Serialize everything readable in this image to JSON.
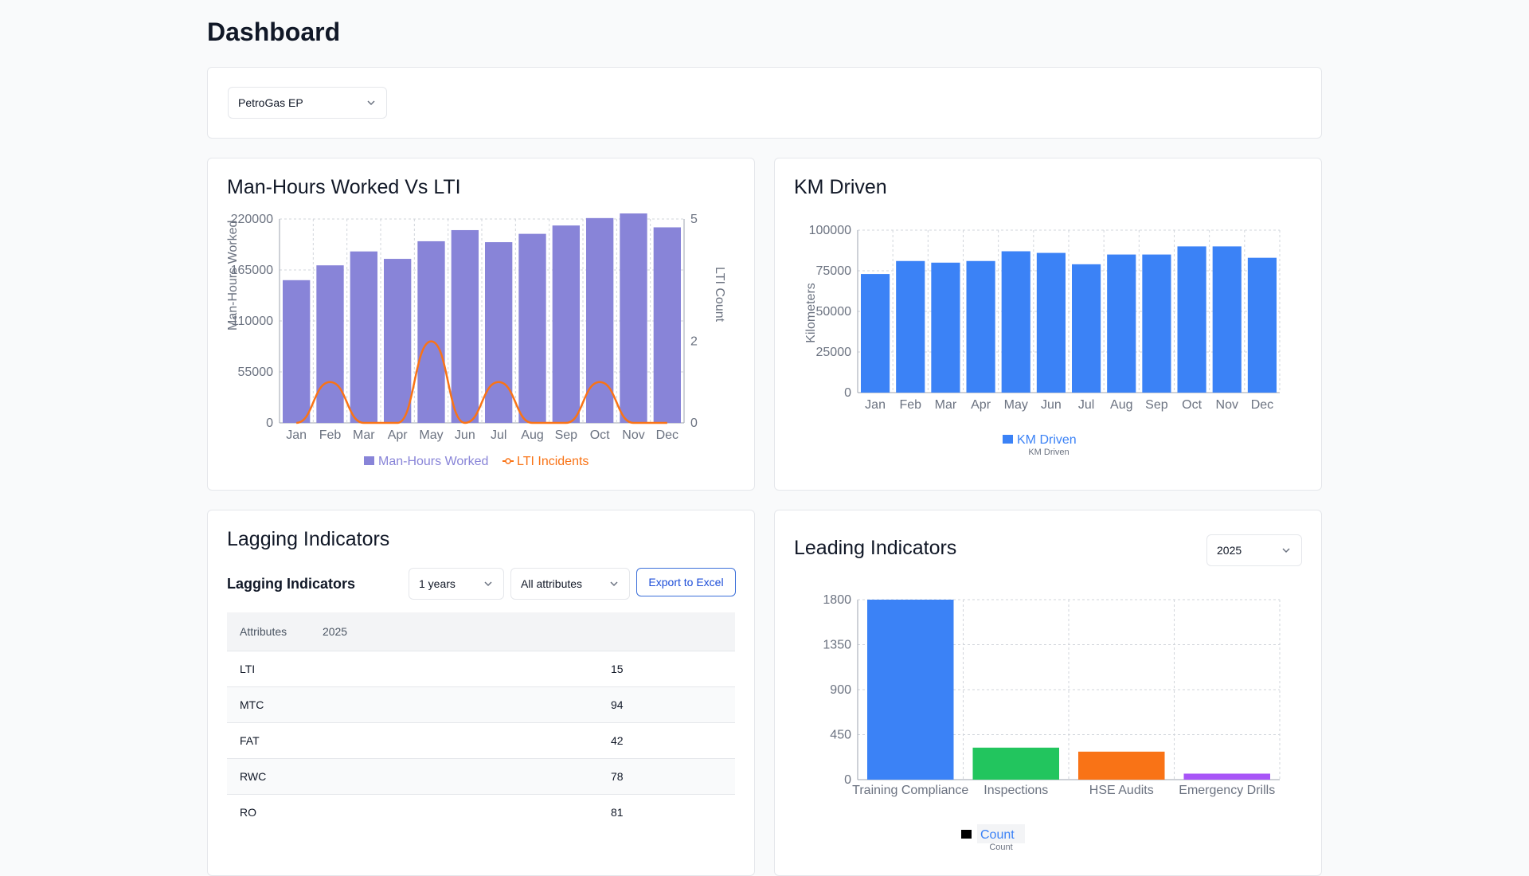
{
  "page": {
    "title": "Dashboard"
  },
  "company_select": {
    "value": "PetroGas EP"
  },
  "manhours_card": {
    "title": "Man-Hours Worked Vs LTI",
    "legend_bar": "Man-Hours Worked",
    "legend_line": "LTI Incidents"
  },
  "km_card": {
    "title": "KM Driven",
    "legend": "KM Driven",
    "legend_sub": "KM Driven"
  },
  "lagging_card": {
    "title": "Lagging Indicators",
    "subtitle": "Lagging Indicators",
    "period_select": "1 years",
    "attr_select": "All attributes",
    "export_label": "Export to Excel",
    "columns": [
      "Attributes",
      "2025"
    ],
    "rows": [
      {
        "name": "LTI",
        "value": "15"
      },
      {
        "name": "MTC",
        "value": "94"
      },
      {
        "name": "FAT",
        "value": "42"
      },
      {
        "name": "RWC",
        "value": "78"
      },
      {
        "name": "RO",
        "value": "81"
      }
    ]
  },
  "leading_card": {
    "title": "Leading Indicators",
    "year_select": "2025",
    "legend": "Count",
    "legend_sub": "Count"
  },
  "colors": {
    "manhours_bar": "#8884d8",
    "lti_line": "#f97316",
    "km_bar": "#3b82f6",
    "leading": [
      "#3b82f6",
      "#22c55e",
      "#f97316",
      "#a855f7"
    ]
  },
  "chart_data": [
    {
      "type": "bar",
      "title": "Man-Hours Worked Vs LTI",
      "categories": [
        "Jan",
        "Feb",
        "Mar",
        "Apr",
        "May",
        "Jun",
        "Jul",
        "Aug",
        "Sep",
        "Oct",
        "Nov",
        "Dec"
      ],
      "series": [
        {
          "name": "Man-Hours Worked",
          "type": "bar",
          "axis": "left",
          "values": [
            154000,
            170000,
            185000,
            177000,
            196000,
            208000,
            195000,
            204000,
            213000,
            221000,
            226000,
            211000
          ]
        },
        {
          "name": "LTI Incidents",
          "type": "line",
          "axis": "right",
          "values": [
            0,
            1,
            0,
            0,
            2,
            0,
            1,
            0,
            0,
            1,
            0,
            0
          ]
        }
      ],
      "ylabel": "Man-Hours Worked",
      "y2label": "LTI Count",
      "ylim": [
        0,
        220000
      ],
      "yticks": [
        0,
        55000,
        110000,
        165000,
        220000
      ],
      "y2lim": [
        0,
        5
      ],
      "y2ticks": [
        0,
        2,
        5
      ]
    },
    {
      "type": "bar",
      "title": "KM Driven",
      "categories": [
        "Jan",
        "Feb",
        "Mar",
        "Apr",
        "May",
        "Jun",
        "Jul",
        "Aug",
        "Sep",
        "Oct",
        "Nov",
        "Dec"
      ],
      "series": [
        {
          "name": "KM Driven",
          "values": [
            73000,
            81000,
            80000,
            81000,
            87000,
            86000,
            79000,
            85000,
            85000,
            90000,
            90000,
            83000
          ]
        }
      ],
      "ylabel": "Kilometers",
      "ylim": [
        0,
        100000
      ],
      "yticks": [
        0,
        25000,
        50000,
        75000,
        100000
      ]
    },
    {
      "type": "bar",
      "title": "Leading Indicators",
      "categories": [
        "Training Compliance",
        "Inspections",
        "HSE Audits",
        "Emergency Drills"
      ],
      "series": [
        {
          "name": "Count",
          "values": [
            1800,
            320,
            280,
            60
          ]
        }
      ],
      "ylim": [
        0,
        1800
      ],
      "yticks": [
        0,
        450,
        900,
        1350,
        1800
      ]
    }
  ]
}
